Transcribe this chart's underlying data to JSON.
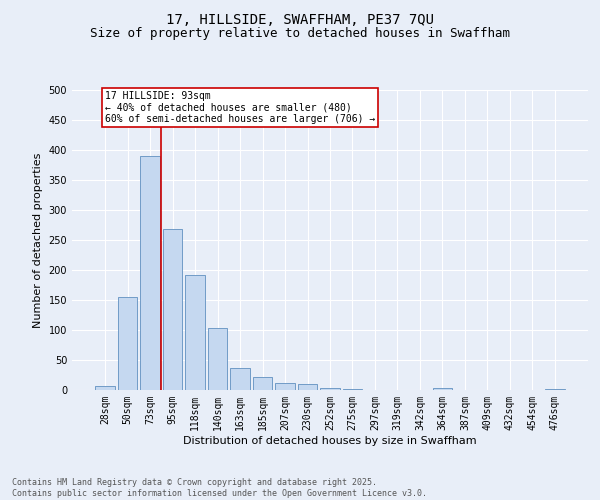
{
  "title": "17, HILLSIDE, SWAFFHAM, PE37 7QU",
  "subtitle": "Size of property relative to detached houses in Swaffham",
  "xlabel": "Distribution of detached houses by size in Swaffham",
  "ylabel": "Number of detached properties",
  "categories": [
    "28sqm",
    "50sqm",
    "73sqm",
    "95sqm",
    "118sqm",
    "140sqm",
    "163sqm",
    "185sqm",
    "207sqm",
    "230sqm",
    "252sqm",
    "275sqm",
    "297sqm",
    "319sqm",
    "342sqm",
    "364sqm",
    "387sqm",
    "409sqm",
    "432sqm",
    "454sqm",
    "476sqm"
  ],
  "values": [
    6,
    155,
    390,
    268,
    191,
    103,
    36,
    22,
    11,
    10,
    3,
    2,
    0,
    0,
    0,
    3,
    0,
    0,
    0,
    0,
    2
  ],
  "bar_color": "#c5d8f0",
  "bar_edge_color": "#6090c0",
  "vline_color": "#cc0000",
  "annotation_text": "17 HILLSIDE: 93sqm\n← 40% of detached houses are smaller (480)\n60% of semi-detached houses are larger (706) →",
  "annotation_box_color": "#ffffff",
  "annotation_box_edge": "#cc0000",
  "ylim": [
    0,
    500
  ],
  "yticks": [
    0,
    50,
    100,
    150,
    200,
    250,
    300,
    350,
    400,
    450,
    500
  ],
  "background_color": "#e8eef8",
  "grid_color": "#ffffff",
  "footer_line1": "Contains HM Land Registry data © Crown copyright and database right 2025.",
  "footer_line2": "Contains public sector information licensed under the Open Government Licence v3.0.",
  "title_fontsize": 10,
  "subtitle_fontsize": 9,
  "axis_label_fontsize": 8,
  "tick_fontsize": 7,
  "footer_fontsize": 6
}
